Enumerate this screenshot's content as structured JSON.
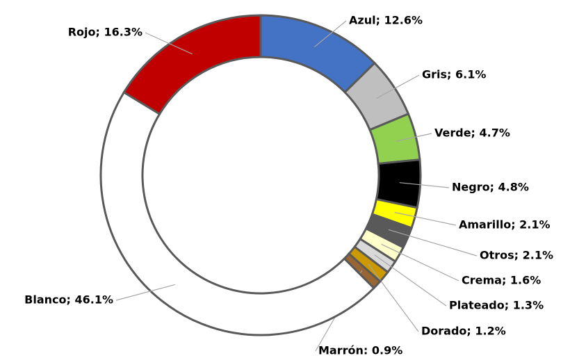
{
  "chart_data": {
    "type": "donut",
    "values": [
      12.6,
      6.1,
      4.7,
      4.8,
      2.1,
      2.1,
      1.6,
      1.3,
      1.2,
      0.9,
      46.1,
      16.3
    ],
    "value_labels": [
      "Azul; 12.6%",
      "Gris; 6.1%",
      "Verde; 4.7%",
      "Negro; 4.8%",
      "Amarillo; 2.1%",
      "Otros; 2.1%",
      "Crema; 1.6%",
      "Plateado; 1.3%",
      "Dorado; 1.2%",
      "Marrón: 0.9%",
      "Blanco; 46.1%",
      "Rojo; 16.3%"
    ],
    "colors": [
      "#4472c4",
      "#bfbfbf",
      "#92d050",
      "#000000",
      "#ffff00",
      "#595959",
      "#ffffcc",
      "#d9d9d9",
      "#cc9900",
      "#996633",
      "#ffffff",
      "#c00000"
    ]
  }
}
